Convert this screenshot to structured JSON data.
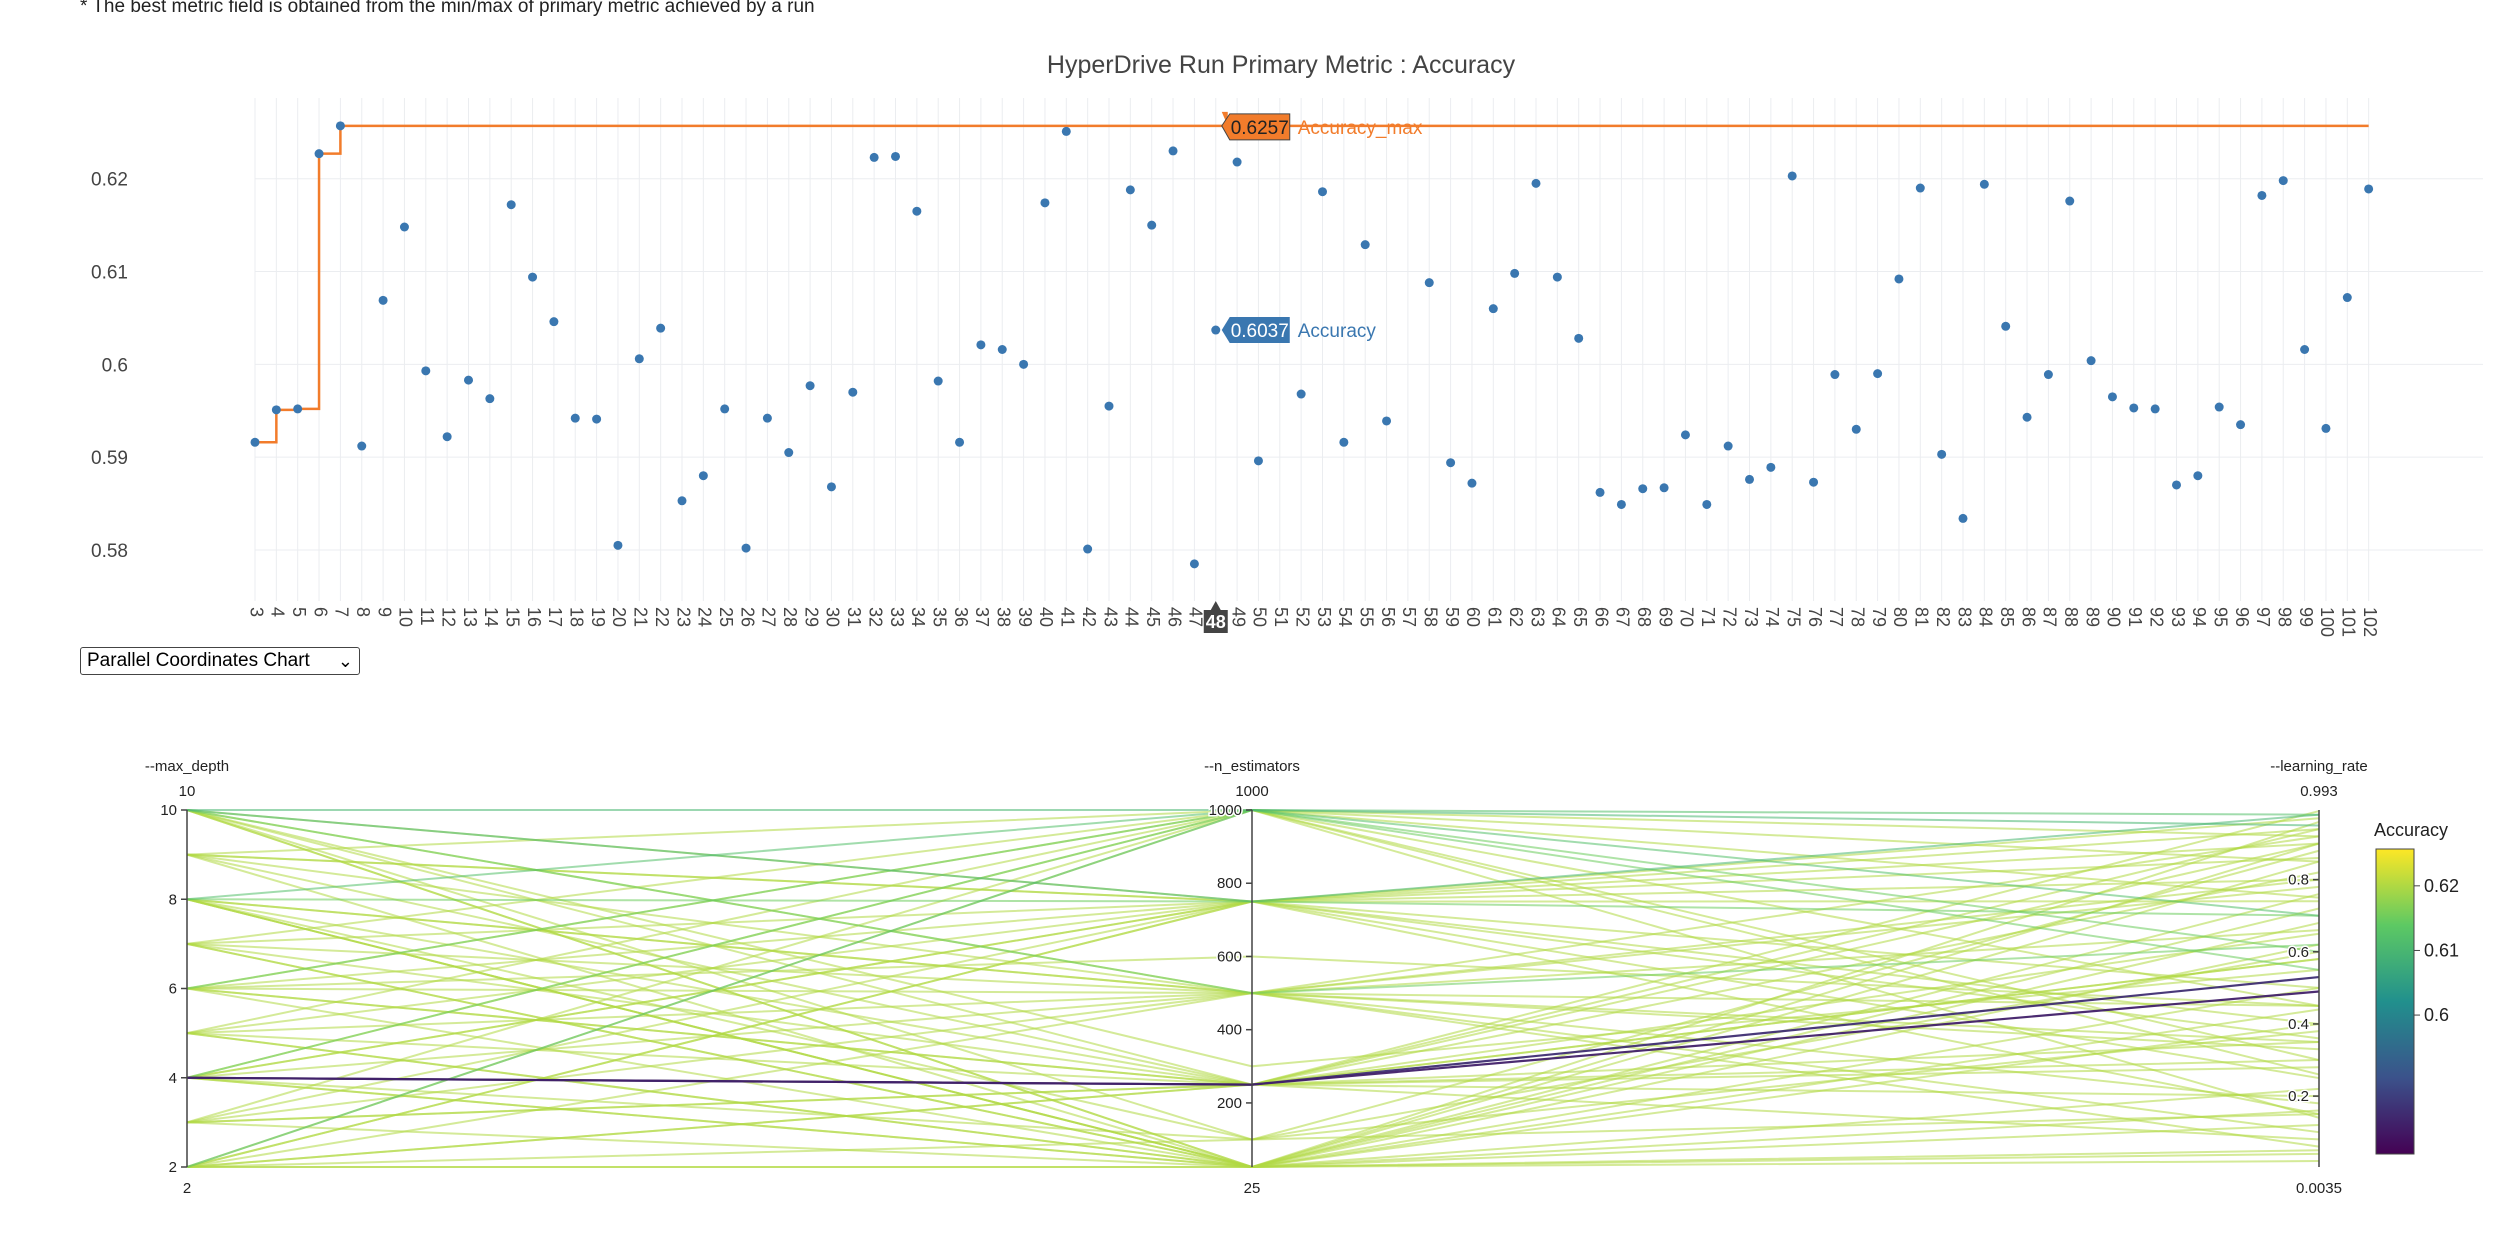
{
  "note": "* The best metric field is obtained from the min/max of primary metric achieved by a run",
  "dropdown": {
    "selected": "Parallel Coordinates Chart",
    "chevron_icon": "chevron-down-icon"
  },
  "colors": {
    "scatter": "#3a77b0",
    "max_line": "#f27c2b",
    "grid": "#ebedf0",
    "hover_dark": "#444444"
  },
  "chart_data": [
    {
      "type": "scatter",
      "title": "HyperDrive Run Primary Metric : Accuracy",
      "xlabel": "",
      "ylabel": "",
      "ylim": [
        0.5745,
        0.6287
      ],
      "yticks": [
        0.58,
        0.59,
        0.6,
        0.61,
        0.62
      ],
      "ytick_labels": [
        "0.58",
        "0.59",
        "0.6",
        "0.61",
        "0.62"
      ],
      "grid": true,
      "categories": [
        "3",
        "4",
        "5",
        "6",
        "7",
        "8",
        "9",
        "10",
        "11",
        "12",
        "13",
        "14",
        "15",
        "16",
        "17",
        "18",
        "19",
        "20",
        "21",
        "22",
        "23",
        "24",
        "25",
        "26",
        "27",
        "28",
        "29",
        "30",
        "31",
        "32",
        "33",
        "34",
        "35",
        "36",
        "37",
        "38",
        "39",
        "40",
        "41",
        "42",
        "43",
        "44",
        "45",
        "46",
        "47",
        "48",
        "49",
        "50",
        "51",
        "52",
        "53",
        "54",
        "55",
        "56",
        "57",
        "58",
        "59",
        "60",
        "61",
        "62",
        "63",
        "64",
        "65",
        "66",
        "67",
        "68",
        "69",
        "70",
        "71",
        "72",
        "73",
        "74",
        "75",
        "76",
        "77",
        "78",
        "79",
        "80",
        "81",
        "82",
        "83",
        "84",
        "85",
        "86",
        "87",
        "88",
        "89",
        "90",
        "91",
        "92",
        "93",
        "94",
        "95",
        "96",
        "97",
        "98",
        "99",
        "100",
        "101",
        "102"
      ],
      "series": [
        {
          "name": "Accuracy",
          "values": [
            0.5916,
            0.5951,
            0.5952,
            0.6227,
            0.6257,
            0.5912,
            0.6069,
            0.6148,
            0.5993,
            0.5922,
            0.5983,
            0.5963,
            0.6172,
            0.6094,
            0.6046,
            0.5942,
            0.5941,
            0.5805,
            0.6006,
            0.6039,
            0.5853,
            0.588,
            0.5952,
            0.5802,
            0.5942,
            0.5905,
            0.5977,
            0.5868,
            0.597,
            0.6223,
            0.6224,
            0.6165,
            0.5982,
            0.5916,
            0.6021,
            0.6016,
            0.6,
            0.6174,
            0.6251,
            0.5801,
            0.5955,
            0.6188,
            0.615,
            0.623,
            0.5785,
            0.6037,
            0.6218,
            0.5896,
            null,
            0.5968,
            0.6186,
            0.5916,
            0.6129,
            0.5939,
            null,
            0.6088,
            0.5894,
            0.5872,
            0.606,
            0.6098,
            0.6195,
            0.6094,
            0.6028,
            0.5862,
            0.5849,
            0.5866,
            0.5867,
            0.5924,
            0.5849,
            0.5912,
            0.5876,
            0.5889,
            0.6203,
            0.5873,
            0.5989,
            0.593,
            0.599,
            0.6092,
            0.619,
            0.5903,
            0.5834,
            0.6194,
            0.6041,
            0.5943,
            0.5989,
            0.6176,
            0.6004,
            0.5965,
            0.5953,
            0.5952,
            0.587,
            0.588,
            0.5954,
            0.5935,
            0.6182,
            0.6198,
            0.6016,
            0.5931,
            0.6072,
            0.6189
          ]
        },
        {
          "name": "Accuracy_max",
          "type": "step",
          "values": [
            0.5916,
            0.5951,
            0.5952,
            0.6227,
            0.6257,
            0.6257,
            0.6257,
            0.6257,
            0.6257,
            0.6257,
            0.6257,
            0.6257,
            0.6257,
            0.6257,
            0.6257,
            0.6257,
            0.6257,
            0.6257,
            0.6257,
            0.6257,
            0.6257,
            0.6257,
            0.6257,
            0.6257,
            0.6257,
            0.6257,
            0.6257,
            0.6257,
            0.6257,
            0.6257,
            0.6257,
            0.6257,
            0.6257,
            0.6257,
            0.6257,
            0.6257,
            0.6257,
            0.6257,
            0.6257,
            0.6257,
            0.6257,
            0.6257,
            0.6257,
            0.6257,
            0.6257,
            0.6257,
            0.6257,
            0.6257,
            0.6257,
            0.6257,
            0.6257,
            0.6257,
            0.6257,
            0.6257,
            0.6257,
            0.6257,
            0.6257,
            0.6257,
            0.6257,
            0.6257,
            0.6257,
            0.6257,
            0.6257,
            0.6257,
            0.6257,
            0.6257,
            0.6257,
            0.6257,
            0.6257,
            0.6257,
            0.6257,
            0.6257,
            0.6257,
            0.6257,
            0.6257,
            0.6257,
            0.6257,
            0.6257,
            0.6257,
            0.6257,
            0.6257,
            0.6257,
            0.6257,
            0.6257,
            0.6257,
            0.6257,
            0.6257,
            0.6257,
            0.6257,
            0.6257,
            0.6257,
            0.6257,
            0.6257,
            0.6257,
            0.6257,
            0.6257,
            0.6257,
            0.6257,
            0.6257,
            0.6257
          ]
        }
      ],
      "hover": {
        "x_label": "48",
        "items": [
          {
            "value_label": "0.6257",
            "series": "Accuracy_max"
          },
          {
            "value_label": "0.6037",
            "series": "Accuracy"
          }
        ]
      }
    },
    {
      "type": "parallel_coordinates",
      "dimensions": [
        {
          "label": "--max_depth",
          "range": [
            2,
            10
          ],
          "max_label": "10",
          "min_label": "2",
          "ticks": [
            2,
            4,
            6,
            8,
            10
          ],
          "tick_labels": [
            "2",
            "4",
            "6",
            "8",
            "10"
          ]
        },
        {
          "label": "--n_estimators",
          "range": [
            25,
            1000
          ],
          "max_label": "1000",
          "min_label": "25",
          "ticks": [
            200,
            400,
            600,
            800,
            1000
          ],
          "tick_labels": [
            "200",
            "400",
            "600",
            "800",
            "1000"
          ]
        },
        {
          "label": "--learning_rate",
          "range": [
            0.0035,
            0.993
          ],
          "max_label": "0.993",
          "min_label": "0.0035",
          "ticks": [
            0.2,
            0.4,
            0.6,
            0.8
          ],
          "tick_labels": [
            "0.2",
            "0.4",
            "0.6",
            "0.8"
          ]
        }
      ],
      "colorbar": {
        "title": "Accuracy",
        "range": [
          0.5785,
          0.6257
        ],
        "ticks": [
          0.6,
          0.61,
          0.62
        ],
        "tick_labels": [
          "0.6",
          "0.61",
          "0.62"
        ],
        "colorscale": [
          "#440154",
          "#3b528b",
          "#21908d",
          "#5dc963",
          "#fde725"
        ]
      },
      "lines": [
        [
          10,
          1000,
          0.95,
          0.61
        ],
        [
          10,
          750,
          0.8,
          0.62
        ],
        [
          10,
          500,
          0.62,
          0.615
        ],
        [
          10,
          250,
          0.35,
          0.62
        ],
        [
          10,
          100,
          0.15,
          0.62
        ],
        [
          10,
          25,
          0.05,
          0.62
        ],
        [
          10,
          750,
          0.98,
          0.61
        ],
        [
          10,
          300,
          0.55,
          0.62
        ],
        [
          9,
          1000,
          0.75,
          0.62
        ],
        [
          9,
          750,
          0.4,
          0.62
        ],
        [
          9,
          500,
          0.1,
          0.62
        ],
        [
          9,
          25,
          0.9,
          0.62
        ],
        [
          8,
          1000,
          0.98,
          0.612
        ],
        [
          8,
          750,
          0.7,
          0.615
        ],
        [
          8,
          500,
          0.45,
          0.62
        ],
        [
          8,
          250,
          0.2,
          0.62
        ],
        [
          8,
          25,
          0.85,
          0.62
        ],
        [
          8,
          100,
          0.6,
          0.62
        ],
        [
          8,
          25,
          0.02,
          0.62
        ],
        [
          7,
          1000,
          0.3,
          0.62
        ],
        [
          7,
          750,
          0.9,
          0.62
        ],
        [
          7,
          250,
          0.65,
          0.62
        ],
        [
          7,
          25,
          0.12,
          0.62
        ],
        [
          6,
          1000,
          0.55,
          0.615
        ],
        [
          6,
          750,
          0.25,
          0.62
        ],
        [
          6,
          500,
          0.92,
          0.62
        ],
        [
          6,
          250,
          0.08,
          0.62
        ],
        [
          6,
          25,
          0.72,
          0.62
        ],
        [
          6,
          600,
          0.45,
          0.62
        ],
        [
          5,
          1000,
          0.85,
          0.62
        ],
        [
          5,
          500,
          0.35,
          0.62
        ],
        [
          5,
          250,
          0.58,
          0.62
        ],
        [
          5,
          25,
          0.96,
          0.62
        ],
        [
          4,
          1000,
          0.6,
          0.615
        ],
        [
          4,
          750,
          0.15,
          0.62
        ],
        [
          4,
          500,
          0.8,
          0.62
        ],
        [
          4,
          250,
          0.53,
          0.585
        ],
        [
          4,
          250,
          0.49,
          0.583
        ],
        [
          4,
          250,
          0.99,
          0.62
        ],
        [
          4,
          25,
          0.4,
          0.62
        ],
        [
          4,
          100,
          0.88,
          0.62
        ],
        [
          4,
          25,
          0.22,
          0.62
        ],
        [
          3,
          1000,
          0.45,
          0.62
        ],
        [
          3,
          750,
          0.94,
          0.62
        ],
        [
          3,
          250,
          0.3,
          0.62
        ],
        [
          3,
          25,
          0.68,
          0.62
        ],
        [
          2,
          1000,
          0.7,
          0.612
        ],
        [
          2,
          750,
          0.5,
          0.62
        ],
        [
          2,
          500,
          0.18,
          0.62
        ],
        [
          2,
          250,
          0.82,
          0.62
        ],
        [
          2,
          25,
          0.04,
          0.62
        ],
        [
          2,
          25,
          0.62,
          0.62
        ],
        [
          2,
          100,
          0.38,
          0.62
        ],
        [
          2,
          750,
          0.97,
          0.62
        ],
        [
          10,
          25,
          0.76,
          0.62
        ],
        [
          9,
          250,
          0.28,
          0.62
        ],
        [
          8,
          500,
          0.66,
          0.62
        ],
        [
          7,
          25,
          0.5,
          0.62
        ],
        [
          6,
          1000,
          0.14,
          0.62
        ],
        [
          5,
          750,
          0.74,
          0.62
        ],
        [
          4,
          1000,
          0.92,
          0.62
        ],
        [
          3,
          500,
          0.06,
          0.62
        ],
        [
          2,
          250,
          0.58,
          0.62
        ],
        [
          10,
          500,
          0.33,
          0.62
        ],
        [
          9,
          750,
          0.86,
          0.62
        ],
        [
          8,
          25,
          0.44,
          0.62
        ],
        [
          6,
          250,
          0.94,
          0.62
        ],
        [
          4,
          750,
          0.36,
          0.62
        ],
        [
          2,
          1000,
          0.26,
          0.62
        ],
        [
          5,
          25,
          0.16,
          0.62
        ],
        [
          7,
          500,
          0.78,
          0.62
        ],
        [
          3,
          250,
          0.9,
          0.62
        ]
      ]
    }
  ]
}
